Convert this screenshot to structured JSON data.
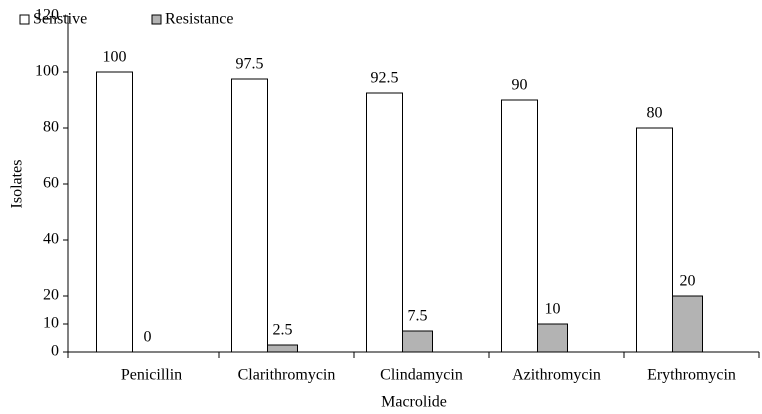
{
  "chart_data": {
    "type": "bar",
    "x_label": "Macrolide",
    "y_label": "Isolates",
    "categories": [
      "Penicillin",
      "Clarithromycin",
      "Clindamycin",
      "Azithromycin",
      "Erythromycin"
    ],
    "series": [
      {
        "name": "Senstive",
        "color": "#ffffff",
        "values": [
          100,
          97.5,
          92.5,
          90,
          80
        ]
      },
      {
        "name": "Resistance",
        "color": "#b3b3b3",
        "values": [
          0,
          2.5,
          7.5,
          10,
          20
        ]
      }
    ],
    "ylim": [
      0,
      120
    ],
    "yticks": [
      0,
      10,
      20,
      40,
      60,
      80,
      100,
      120
    ],
    "grid": false,
    "legend": "top-left"
  }
}
